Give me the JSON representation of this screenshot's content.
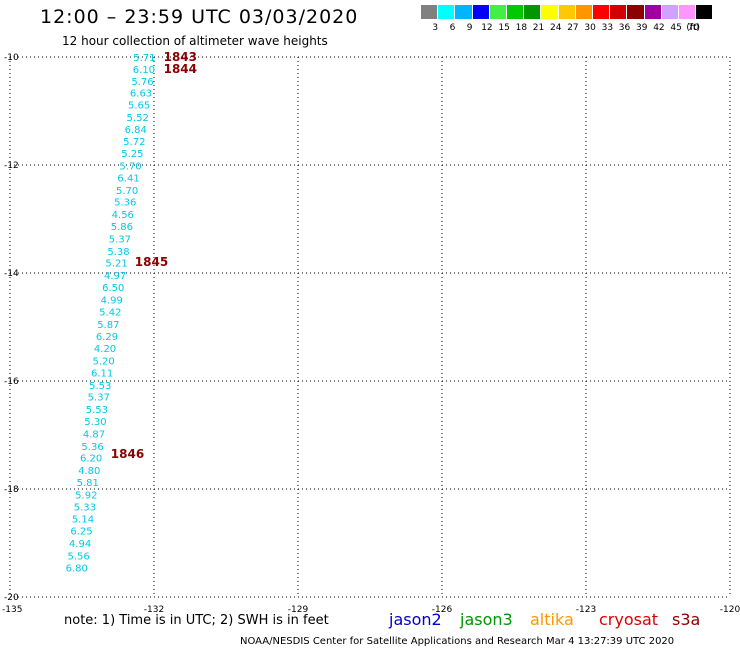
{
  "title": "12:00 – 23:59 UTC 03/03/2020",
  "subtitle": "12 hour collection of altimeter wave heights",
  "legend": {
    "unit": "(ft)",
    "bins": [
      {
        "label": "3",
        "color": "#808080"
      },
      {
        "label": "6",
        "color": "#00ffff"
      },
      {
        "label": "9",
        "color": "#00b4ff"
      },
      {
        "label": "12",
        "color": "#0000ff"
      },
      {
        "label": "15",
        "color": "#44ee44"
      },
      {
        "label": "18",
        "color": "#00c800"
      },
      {
        "label": "21",
        "color": "#009600"
      },
      {
        "label": "24",
        "color": "#ffff00"
      },
      {
        "label": "27",
        "color": "#ffc800"
      },
      {
        "label": "30",
        "color": "#ff9600"
      },
      {
        "label": "33",
        "color": "#ff0000"
      },
      {
        "label": "36",
        "color": "#d20000"
      },
      {
        "label": "39",
        "color": "#8c0000"
      },
      {
        "label": "42",
        "color": "#a000a0"
      },
      {
        "label": "45",
        "color": "#d2a0ff"
      },
      {
        "label": "70",
        "color": "#ff96ff"
      },
      {
        "label": "",
        "color": "#000000"
      }
    ]
  },
  "axes": {
    "lon_ticks": [
      "-135",
      "-132",
      "-129",
      "-126",
      "-123",
      "-120"
    ],
    "lat_ticks": [
      "-10",
      "-12",
      "-14",
      "-16",
      "-18",
      "-20"
    ]
  },
  "track": {
    "color": "#00c8e6",
    "observations": [
      {
        "lat": -10.0,
        "lon": -132.2,
        "swh": "5.71"
      },
      {
        "lat": -10.22,
        "lon": -132.21,
        "swh": "6.10"
      },
      {
        "lat": -10.44,
        "lon": -132.24,
        "swh": "5.76"
      },
      {
        "lat": -10.66,
        "lon": -132.27,
        "swh": "6.63"
      },
      {
        "lat": -10.88,
        "lon": -132.31,
        "swh": "5.65"
      },
      {
        "lat": -11.11,
        "lon": -132.34,
        "swh": "5.52"
      },
      {
        "lat": -11.33,
        "lon": -132.38,
        "swh": "6.84"
      },
      {
        "lat": -11.56,
        "lon": -132.41,
        "swh": "5.72"
      },
      {
        "lat": -11.78,
        "lon": -132.45,
        "swh": "5.25"
      },
      {
        "lat": -12.01,
        "lon": -132.49,
        "swh": "5.70"
      },
      {
        "lat": -12.23,
        "lon": -132.53,
        "swh": "6.41"
      },
      {
        "lat": -12.46,
        "lon": -132.56,
        "swh": "5.70"
      },
      {
        "lat": -12.68,
        "lon": -132.6,
        "swh": "5.36"
      },
      {
        "lat": -12.91,
        "lon": -132.65,
        "swh": "4.56"
      },
      {
        "lat": -13.13,
        "lon": -132.67,
        "swh": "5.86"
      },
      {
        "lat": -13.36,
        "lon": -132.71,
        "swh": "5.37"
      },
      {
        "lat": -13.59,
        "lon": -132.74,
        "swh": "5.38"
      },
      {
        "lat": -13.81,
        "lon": -132.78,
        "swh": "5.21"
      },
      {
        "lat": -14.04,
        "lon": -132.81,
        "swh": "4.97"
      },
      {
        "lat": -14.26,
        "lon": -132.85,
        "swh": "6.50"
      },
      {
        "lat": -14.49,
        "lon": -132.88,
        "swh": "4.99"
      },
      {
        "lat": -14.71,
        "lon": -132.91,
        "swh": "5.42"
      },
      {
        "lat": -14.94,
        "lon": -132.95,
        "swh": "5.87"
      },
      {
        "lat": -15.17,
        "lon": -132.98,
        "swh": "6.29"
      },
      {
        "lat": -15.39,
        "lon": -133.02,
        "swh": "4.20"
      },
      {
        "lat": -15.62,
        "lon": -133.05,
        "swh": "5.20"
      },
      {
        "lat": -15.84,
        "lon": -133.08,
        "swh": "6.11"
      },
      {
        "lat": -16.07,
        "lon": -133.12,
        "swh": "5.53"
      },
      {
        "lat": -16.29,
        "lon": -133.15,
        "swh": "5.37"
      },
      {
        "lat": -16.52,
        "lon": -133.19,
        "swh": "5.53"
      },
      {
        "lat": -16.74,
        "lon": -133.22,
        "swh": "5.30"
      },
      {
        "lat": -16.97,
        "lon": -133.25,
        "swh": "4.87"
      },
      {
        "lat": -17.2,
        "lon": -133.28,
        "swh": "5.36"
      },
      {
        "lat": -17.42,
        "lon": -133.31,
        "swh": "6.20"
      },
      {
        "lat": -17.65,
        "lon": -133.35,
        "swh": "4.80"
      },
      {
        "lat": -17.87,
        "lon": -133.38,
        "swh": "5.81"
      },
      {
        "lat": -18.1,
        "lon": -133.41,
        "swh": "5.92"
      },
      {
        "lat": -18.32,
        "lon": -133.44,
        "swh": "5.33"
      },
      {
        "lat": -18.55,
        "lon": -133.48,
        "swh": "5.14"
      },
      {
        "lat": -18.77,
        "lon": -133.51,
        "swh": "6.25"
      },
      {
        "lat": -19.0,
        "lon": -133.54,
        "swh": "4.94"
      },
      {
        "lat": -19.23,
        "lon": -133.57,
        "swh": "5.56"
      },
      {
        "lat": -19.45,
        "lon": -133.61,
        "swh": "6.80"
      }
    ],
    "time_labels": [
      {
        "lat": -10.0,
        "lon": -131.8,
        "text": "1843"
      },
      {
        "lat": -10.22,
        "lon": -131.8,
        "text": "1844"
      },
      {
        "lat": -13.8,
        "lon": -132.4,
        "text": "1845"
      },
      {
        "lat": -17.35,
        "lon": -132.9,
        "text": "1846"
      }
    ],
    "time_label_color": "#8c0000"
  },
  "note": "note: 1) Time is in UTC; 2) SWH is in feet",
  "satellites": [
    {
      "name": "jason2",
      "color": "#0000cc"
    },
    {
      "name": "jason3",
      "color": "#009600"
    },
    {
      "name": "altika",
      "color": "#ff9600"
    },
    {
      "name": "cryosat",
      "color": "#dd0000"
    },
    {
      "name": "s3a",
      "color": "#8c0000"
    }
  ],
  "footer": "NOAA/NESDIS Center for Satellite Applications and Research   Mar  4 13:27:39 UTC 2020"
}
